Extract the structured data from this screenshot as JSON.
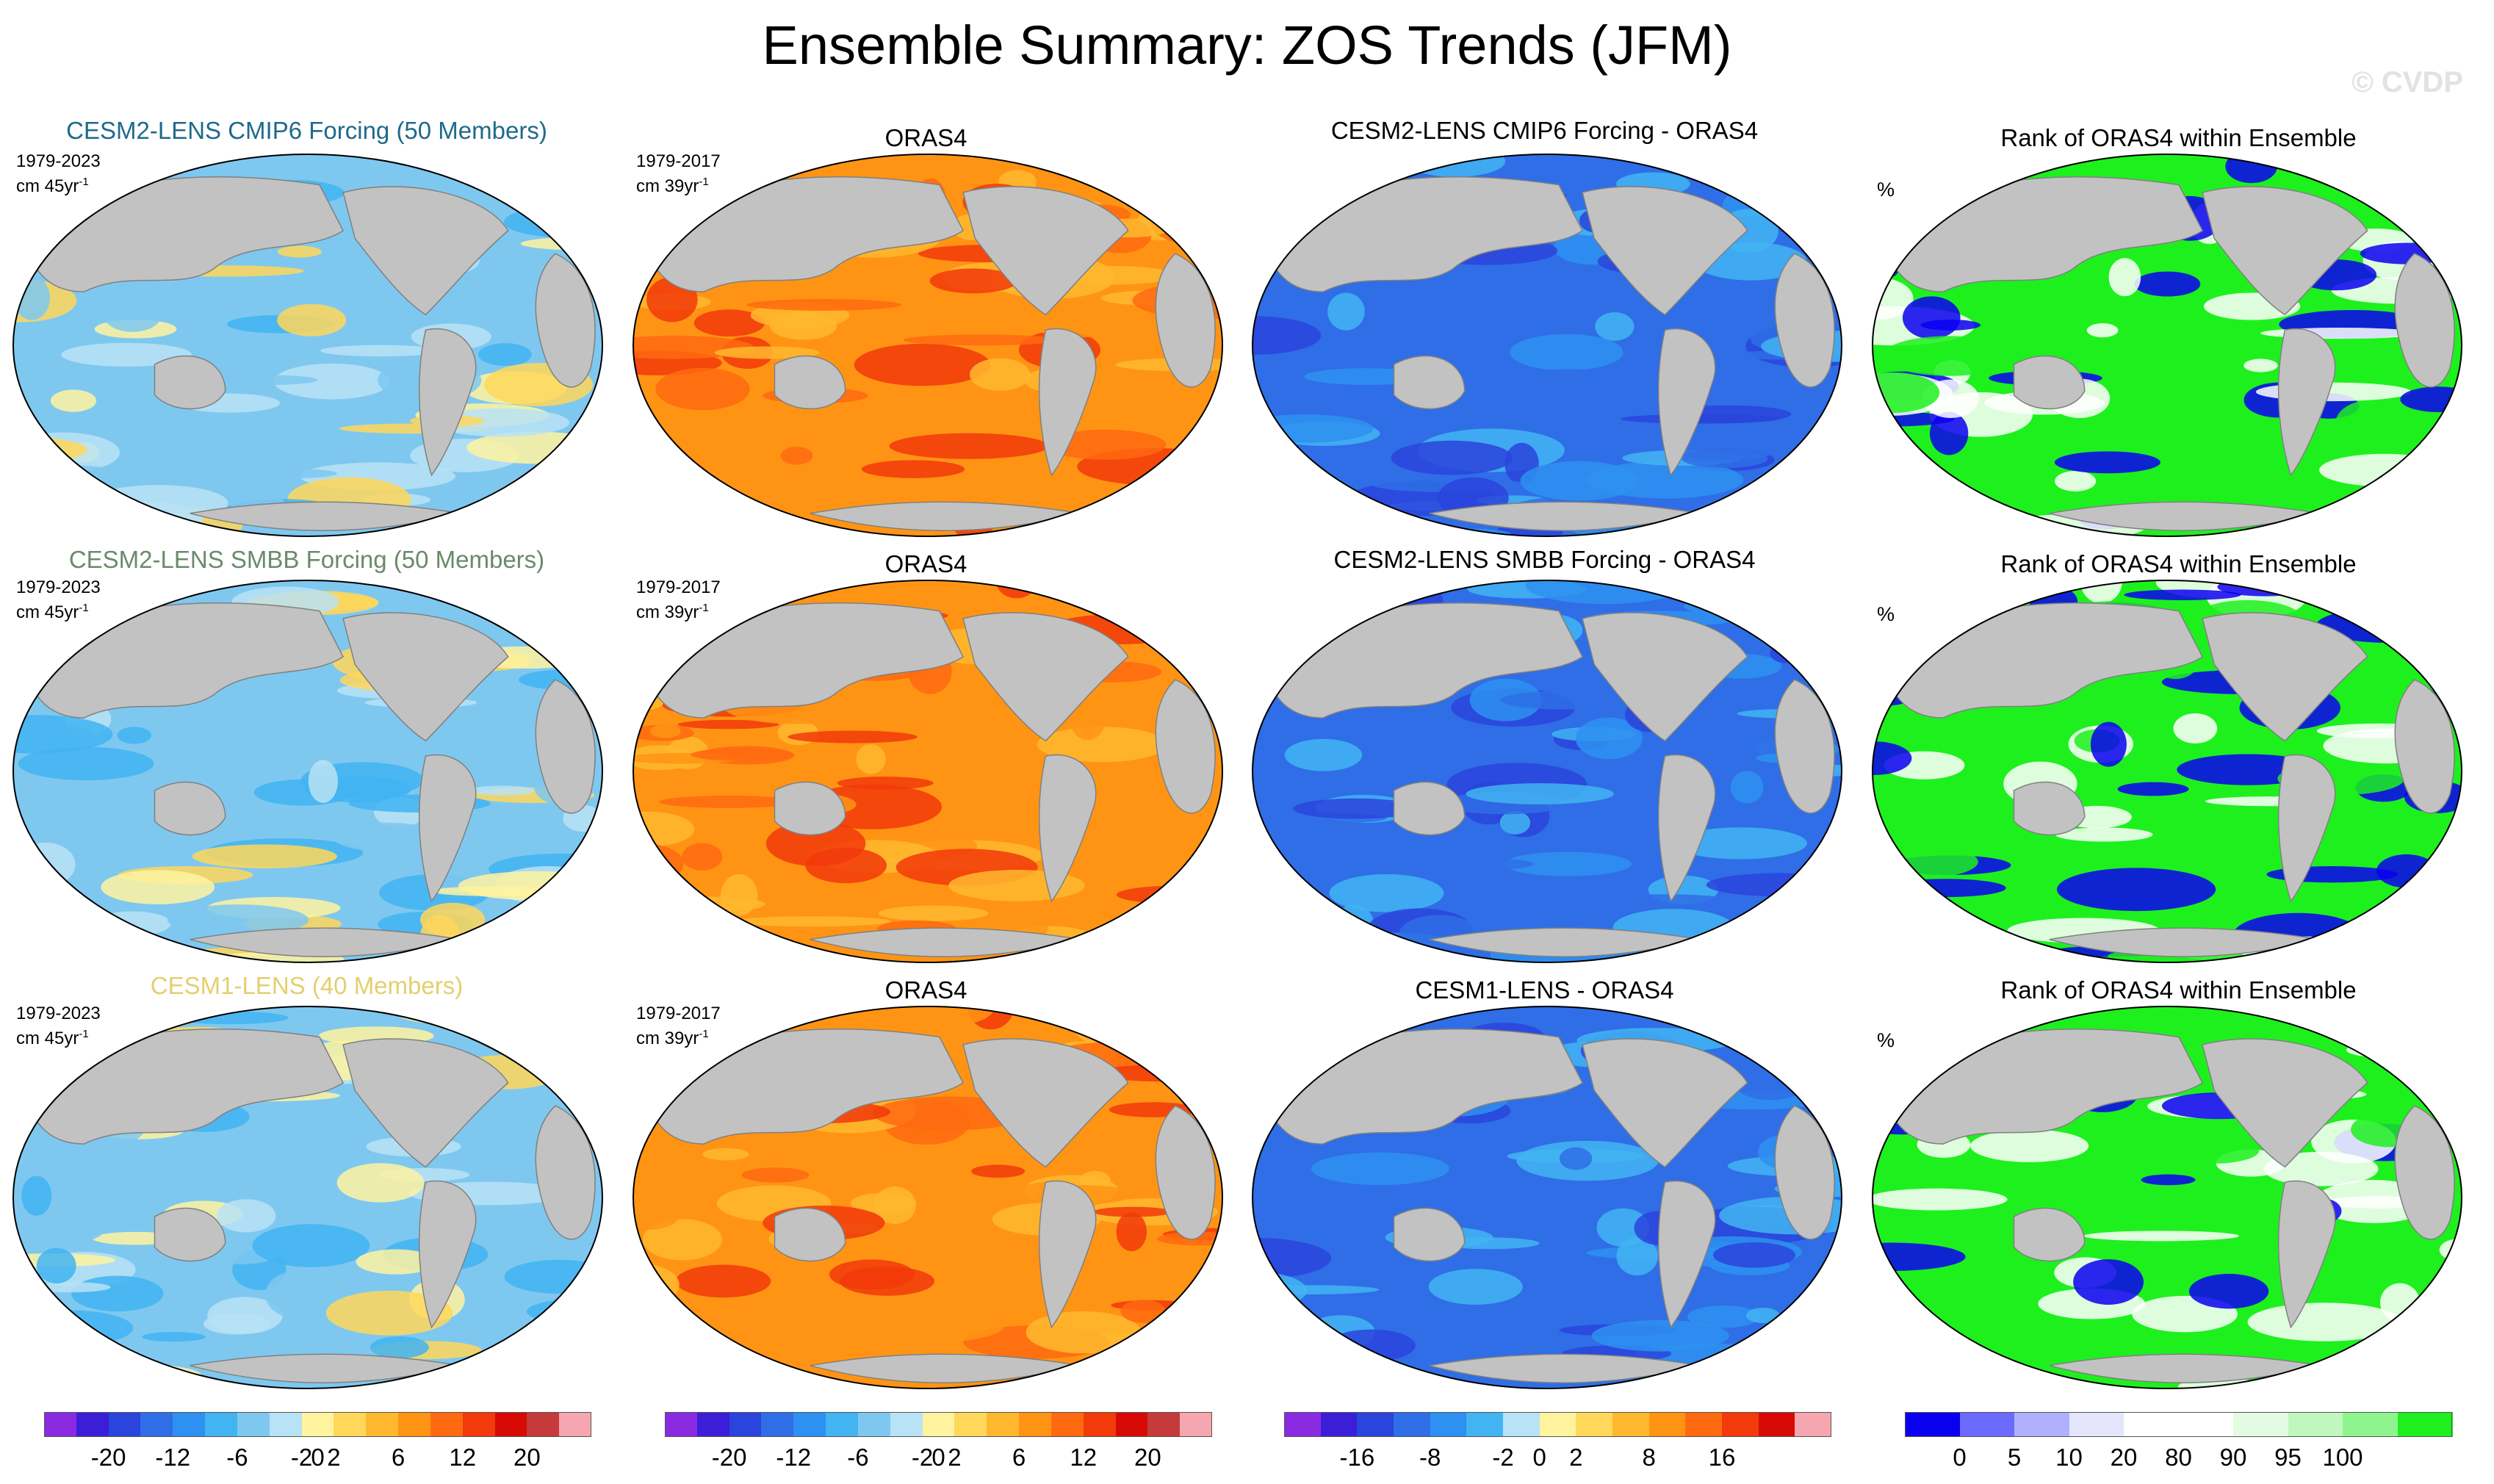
{
  "title": "Ensemble Summary: ZOS Trends (JFM)",
  "watermark": "© CVDP",
  "rows": [
    {
      "ensemble": {
        "title": "CESM2-LENS CMIP6 Forcing (50 Members)",
        "title_color": "#1f6a8a",
        "period": "1979-2023",
        "units": "cm 45yr",
        "units_exp": "-1"
      },
      "obs": {
        "title": "ORAS4",
        "period": "1979-2017",
        "units": "cm 39yr",
        "units_exp": "-1"
      },
      "diff": {
        "title": "CESM2-LENS CMIP6 Forcing - ORAS4"
      },
      "rank": {
        "title": "Rank of ORAS4 within Ensemble",
        "units": "%"
      }
    },
    {
      "ensemble": {
        "title": "CESM2-LENS SMBB Forcing (50 Members)",
        "title_color": "#6a8a6a",
        "period": "1979-2023",
        "units": "cm 45yr",
        "units_exp": "-1"
      },
      "obs": {
        "title": "ORAS4",
        "period": "1979-2017",
        "units": "cm 39yr",
        "units_exp": "-1"
      },
      "diff": {
        "title": "CESM2-LENS SMBB Forcing - ORAS4"
      },
      "rank": {
        "title": "Rank of ORAS4 within Ensemble",
        "units": "%"
      }
    },
    {
      "ensemble": {
        "title": "CESM1-LENS (40 Members)",
        "title_color": "#e3cf6e",
        "period": "1979-2023",
        "units": "cm 45yr",
        "units_exp": "-1"
      },
      "obs": {
        "title": "ORAS4",
        "period": "1979-2017",
        "units": "cm 39yr",
        "units_exp": "-1"
      },
      "diff": {
        "title": "CESM1-LENS - ORAS4"
      },
      "rank": {
        "title": "Rank of ORAS4 within Ensemble",
        "units": "%"
      }
    }
  ],
  "colorbars": [
    {
      "labels": [
        "-20",
        "-12",
        "-6",
        "-2",
        "0",
        "2",
        "6",
        "12",
        "20"
      ],
      "colors": [
        "#8a2be2",
        "#3a1ed8",
        "#2a44dc",
        "#2f6ee6",
        "#2e90f0",
        "#42b4f2",
        "#7ec8f0",
        "#b8e2f5",
        "#fff3a0",
        "#ffd75a",
        "#ffb82e",
        "#ff9414",
        "#ff6a10",
        "#f23a0a",
        "#d80a06",
        "#c53a3a",
        "#f5a6b0"
      ]
    },
    {
      "labels": [
        "-20",
        "-12",
        "-6",
        "-2",
        "0",
        "2",
        "6",
        "12",
        "20"
      ],
      "colors": [
        "#8a2be2",
        "#3a1ed8",
        "#2a44dc",
        "#2f6ee6",
        "#2e90f0",
        "#42b4f2",
        "#7ec8f0",
        "#b8e2f5",
        "#fff3a0",
        "#ffd75a",
        "#ffb82e",
        "#ff9414",
        "#ff6a10",
        "#f23a0a",
        "#d80a06",
        "#c53a3a",
        "#f5a6b0"
      ]
    },
    {
      "labels": [
        "-16",
        "-8",
        "-2",
        "0",
        "2",
        "8",
        "16"
      ],
      "colors": [
        "#8a2be2",
        "#3a1ed8",
        "#2a44dc",
        "#2f6ee6",
        "#2e90f0",
        "#42b4f2",
        "#b8e2f5",
        "#fff3a0",
        "#ffd75a",
        "#ffb82e",
        "#ff9414",
        "#ff6a10",
        "#f23a0a",
        "#d80a06",
        "#f5a6b0"
      ]
    },
    {
      "labels": [
        "0",
        "5",
        "10",
        "20",
        "80",
        "90",
        "95",
        "100"
      ],
      "colors": [
        "#0a00f0",
        "#6b6bff",
        "#b0b0ff",
        "#e4e4fa",
        "#ffffff",
        "#ffffff",
        "#e2fbe2",
        "#bff7bf",
        "#8ef58e",
        "#1ef01e"
      ]
    }
  ],
  "map_colors": {
    "land": "#c2c2c2",
    "ensemble": [
      "#7ec8f0",
      "#b8e2f5",
      "#fff3a0",
      "#ffd75a",
      "#42b4f2"
    ],
    "obs": [
      "#ff9414",
      "#ff6a10",
      "#f23a0a",
      "#ffb82e"
    ],
    "diff": [
      "#2f6ee6",
      "#2e90f0",
      "#2a44dc",
      "#42b4f2"
    ],
    "rank": [
      "#1ef01e",
      "#ffffff",
      "#0a00f0"
    ]
  }
}
